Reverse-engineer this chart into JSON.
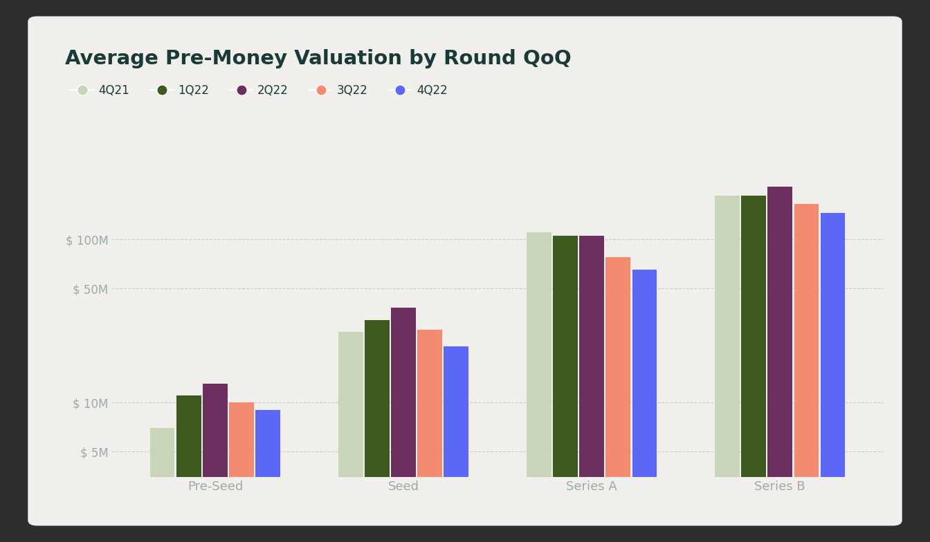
{
  "title": "Average Pre-Money Valuation by Round QoQ",
  "categories": [
    "Pre-Seed",
    "Seed",
    "Series A",
    "Series B"
  ],
  "series": [
    {
      "label": "4Q21",
      "color": "#c8d5b9",
      "values": [
        7,
        27,
        110,
        185
      ]
    },
    {
      "label": "1Q22",
      "color": "#3d5a1e",
      "values": [
        11,
        32,
        105,
        185
      ]
    },
    {
      "label": "2Q22",
      "color": "#6b3060",
      "values": [
        13,
        38,
        105,
        210
      ]
    },
    {
      "label": "3Q22",
      "color": "#f28b70",
      "values": [
        10,
        28,
        78,
        165
      ]
    },
    {
      "label": "4Q22",
      "color": "#5b68f5",
      "values": [
        9,
        22,
        65,
        145
      ]
    }
  ],
  "yticks": [
    5,
    10,
    50,
    100
  ],
  "ytick_labels": [
    "$ 5M",
    "$ 10M",
    "$ 50M",
    "$ 100M"
  ],
  "ymin": 3.5,
  "ymax": 400,
  "outer_bg_color": "#2e2e2e",
  "card_bg_color": "#f0efeb",
  "title_color": "#1a3a3a",
  "tick_label_color": "#9aabab",
  "grid_color": "#cccccc",
  "category_label_color": "#9aabab",
  "title_fontsize": 21,
  "legend_fontsize": 12,
  "axis_label_fontsize": 12,
  "bar_width": 0.13,
  "bar_gap": 0.01
}
